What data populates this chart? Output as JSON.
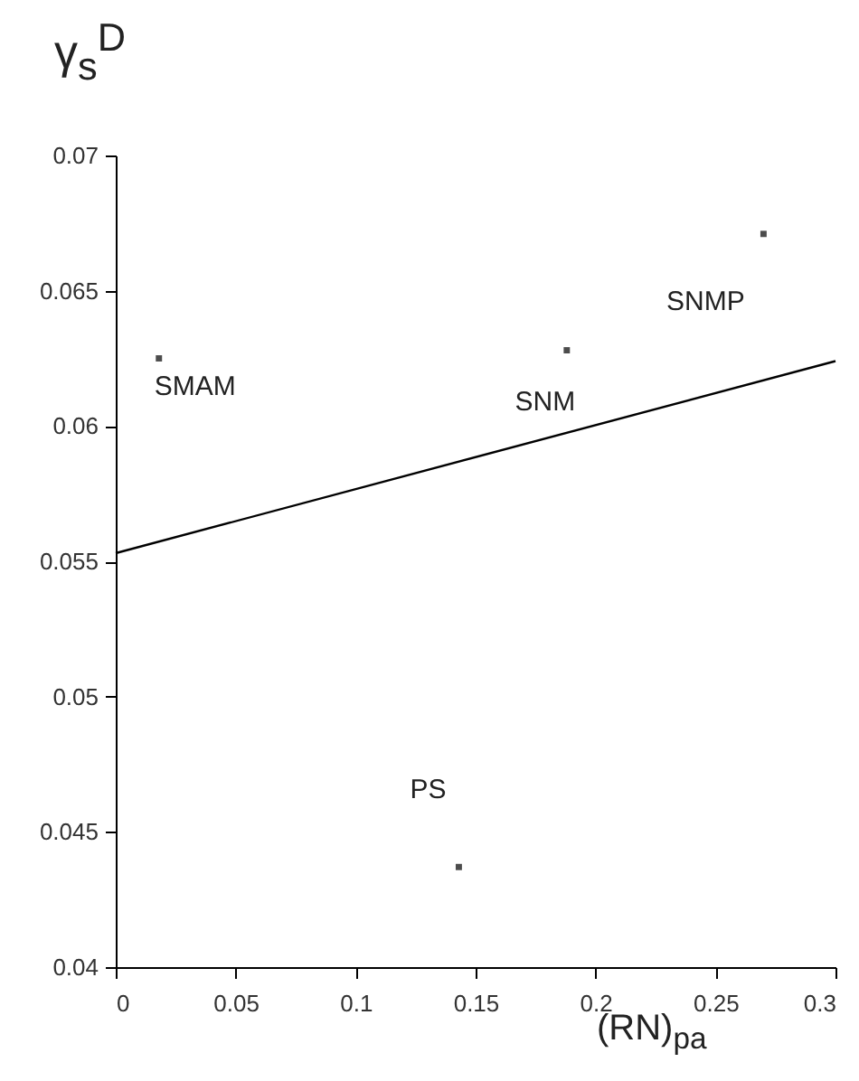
{
  "chart_data": {
    "type": "scatter",
    "xlabel": "(RN)$_{pa}$",
    "ylabel": "γ$_{s}$$^{D}$",
    "xlim": [
      0,
      0.3
    ],
    "xticks": [
      0,
      0.05,
      0.1,
      0.15,
      0.2,
      0.25,
      0.3
    ],
    "ylim": [
      0.04,
      0.07
    ],
    "yticks": [
      0.04,
      0.045,
      0.05,
      0.055,
      0.06,
      0.065,
      0.07
    ],
    "grid": false,
    "series": [
      {
        "marker": "square",
        "color": "#000000",
        "x": [
          0.018,
          0.188,
          0.27,
          0.143
        ],
        "values": [
          0.0625,
          0.0628,
          0.0671,
          0.0437
        ]
      },
      {
        "type": "line",
        "color": "#000000",
        "x": [
          0,
          0.3
        ],
        "values": [
          0.0553,
          0.0624
        ]
      }
    ],
    "annotations": [
      {
        "text": "SMAM",
        "x": 0.018,
        "y": 0.0625
      },
      {
        "text": "SNM",
        "x": 0.188,
        "y": 0.0628
      },
      {
        "text": "SNMP",
        "x": 0.27,
        "y": 0.0671
      },
      {
        "text": "PS",
        "x": 0.143,
        "y": 0.0437
      }
    ]
  }
}
